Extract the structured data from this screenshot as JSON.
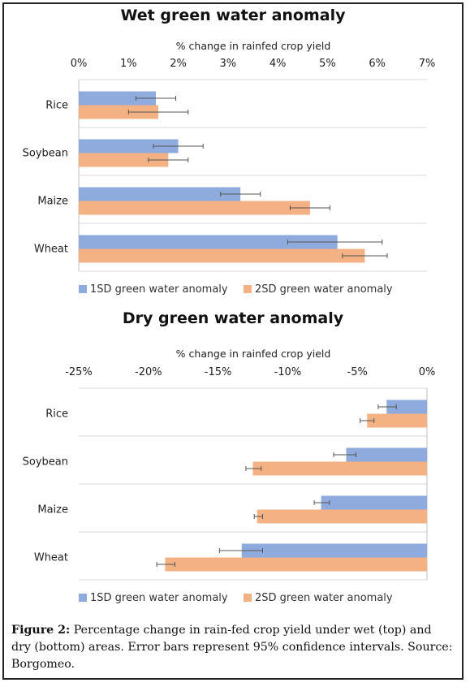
{
  "figure": {
    "caption_label": "Figure 2:",
    "caption_text": " Percentage change in rain-fed crop yield under wet (top) and dry (bottom) areas. Error bars represent 95% confidence intervals. Source: Borgomeo."
  },
  "colors": {
    "series_1sd": "#8faadc",
    "series_2sd": "#f4b183",
    "grid": "#d9d9d9",
    "errorbar": "#555555"
  },
  "chart_data": [
    {
      "type": "bar",
      "orientation": "horizontal",
      "title": "Wet green water anomaly",
      "xlabel": "% change in rainfed crop yield",
      "ylabel": "",
      "xlim": [
        0,
        7
      ],
      "x_ticks": [
        0,
        1,
        2,
        3,
        4,
        5,
        6,
        7
      ],
      "x_tick_labels": [
        "0%",
        "1%",
        "2%",
        "3%",
        "4%",
        "5%",
        "6%",
        "7%"
      ],
      "categories": [
        "Rice",
        "Soybean",
        "Maize",
        "Wheat"
      ],
      "legend_position": "bottom",
      "series": [
        {
          "name": "1SD green water anomaly",
          "values": [
            1.55,
            2.0,
            3.25,
            5.2
          ],
          "err_low": [
            1.15,
            1.5,
            2.85,
            4.2
          ],
          "err_high": [
            1.95,
            2.5,
            3.65,
            6.1
          ]
        },
        {
          "name": "2SD green water anomaly",
          "values": [
            1.6,
            1.8,
            4.65,
            5.75
          ],
          "err_low": [
            1.0,
            1.4,
            4.25,
            5.3
          ],
          "err_high": [
            2.2,
            2.2,
            5.05,
            6.2
          ]
        }
      ]
    },
    {
      "type": "bar",
      "orientation": "horizontal",
      "title": "Dry green water anomaly",
      "xlabel": "% change in rainfed crop yield",
      "ylabel": "",
      "xlim": [
        -25,
        0
      ],
      "x_ticks": [
        -25,
        -20,
        -15,
        -10,
        -5,
        0
      ],
      "x_tick_labels": [
        "-25%",
        "-20%",
        "-15%",
        "-10%",
        "-5%",
        "0%"
      ],
      "categories": [
        "Rice",
        "Soybean",
        "Maize",
        "Wheat"
      ],
      "legend_position": "bottom",
      "series": [
        {
          "name": "1SD green water anomaly",
          "values": [
            -2.9,
            -5.8,
            -7.6,
            -13.3
          ],
          "err_low": [
            -3.5,
            -6.7,
            -8.1,
            -14.9
          ],
          "err_high": [
            -2.2,
            -5.1,
            -7.0,
            -11.8
          ]
        },
        {
          "name": "2SD green water anomaly",
          "values": [
            -4.3,
            -12.5,
            -12.2,
            -18.8
          ],
          "err_low": [
            -4.8,
            -13.0,
            -12.4,
            -19.4
          ],
          "err_high": [
            -3.8,
            -11.9,
            -11.8,
            -18.1
          ]
        }
      ]
    }
  ]
}
